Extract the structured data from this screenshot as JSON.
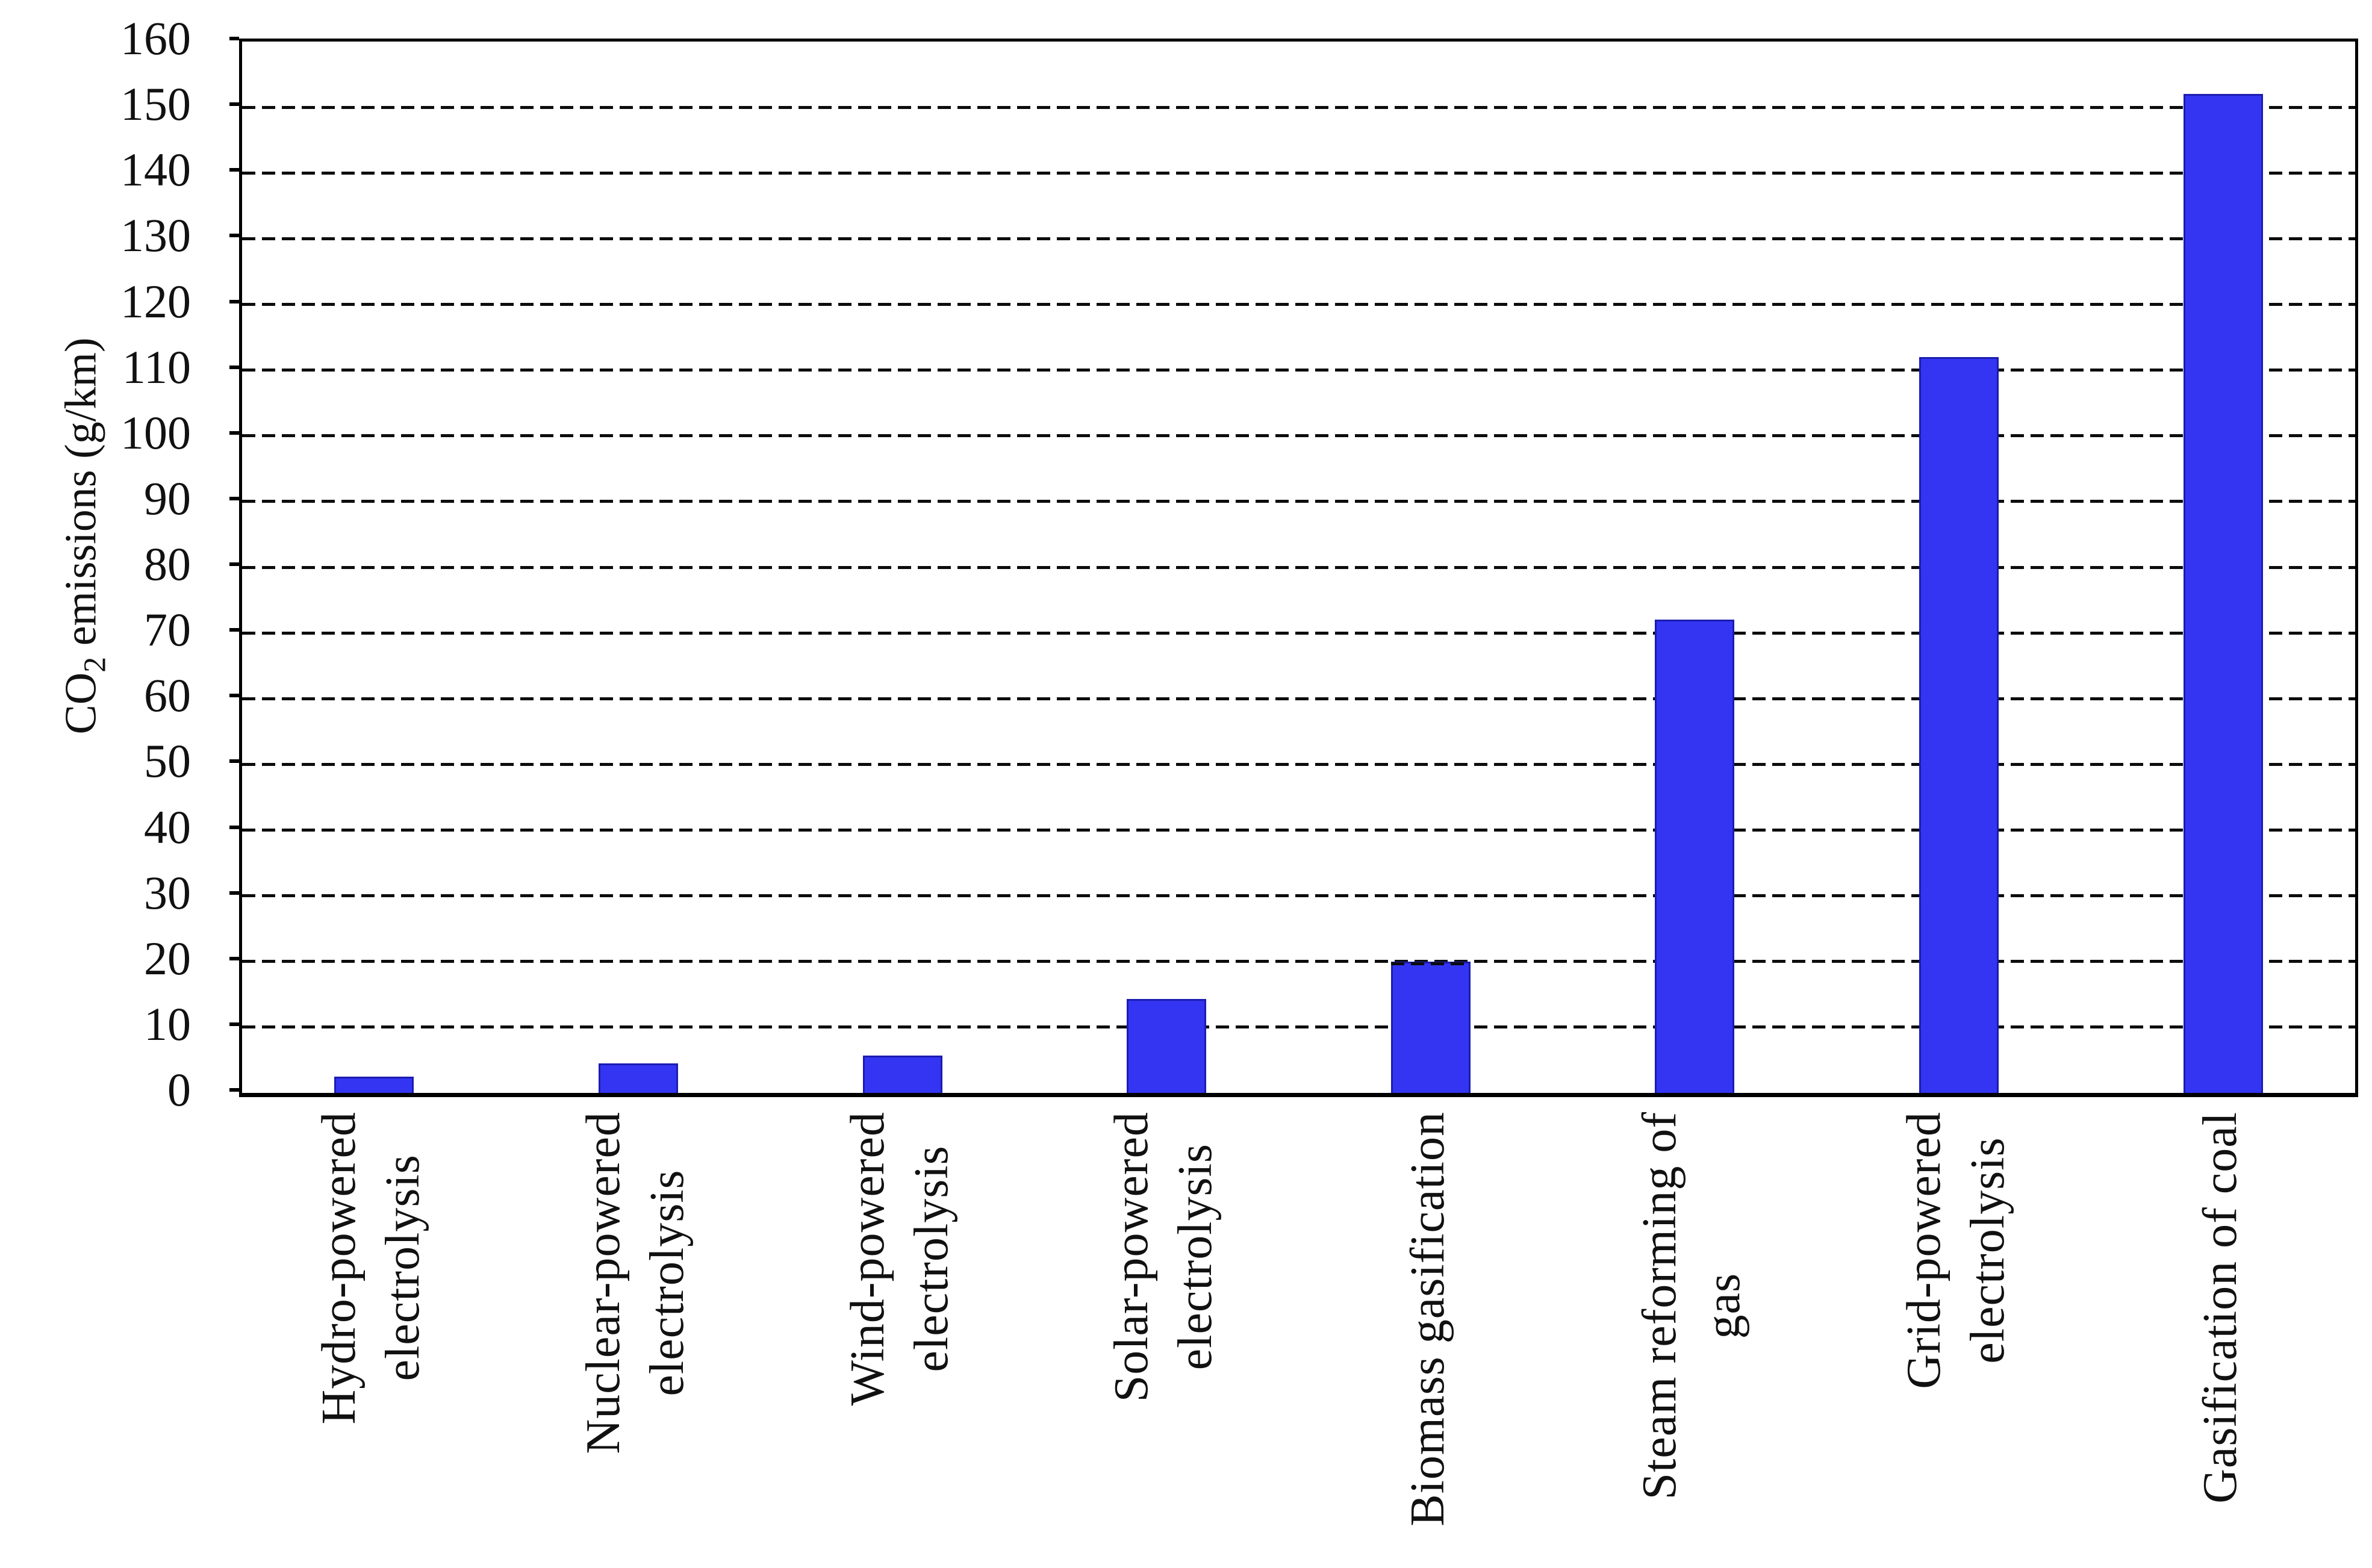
{
  "chart_data": {
    "type": "bar",
    "title": "",
    "xlabel": "",
    "ylabel": "CO2 emissions (g/km)",
    "ylabel_parts": {
      "prefix": "CO",
      "subscript": "2",
      "suffix": " emissions (g/km)"
    },
    "categories": [
      "Hydro-powered electrolysis",
      "Nuclear-powered electrolysis",
      "Wind-powered electrolysis",
      "Solar-powered electrolysis",
      "Biomass gasification",
      "Steam reforming of gas",
      "Grid-powered electrolysis",
      "Gasification of coal"
    ],
    "category_lines": [
      [
        "Hydro-powered",
        "electrolysis"
      ],
      [
        "Nuclear-powered",
        "electrolysis"
      ],
      [
        "Wind-powered",
        "electrolysis"
      ],
      [
        "Solar-powered",
        "electrolysis"
      ],
      [
        "Biomass gasification"
      ],
      [
        "Steam reforming of",
        "gas"
      ],
      [
        "Grid-powered",
        "electrolysis"
      ],
      [
        "Gasification of coal"
      ]
    ],
    "values": [
      2.5,
      4.5,
      5.7,
      14.3,
      20,
      72,
      112,
      152
    ],
    "ylim": [
      0,
      160
    ],
    "y_ticks": [
      0,
      10,
      20,
      30,
      40,
      50,
      60,
      70,
      80,
      90,
      100,
      110,
      120,
      130,
      140,
      150,
      160
    ],
    "grid": "horizontal-dashed",
    "legend_position": "none",
    "colors": {
      "bar_fill": "#3335f2",
      "bar_border": "#1c1cb0",
      "axis": "#000000",
      "text": "#111111",
      "background": "#ffffff"
    }
  }
}
